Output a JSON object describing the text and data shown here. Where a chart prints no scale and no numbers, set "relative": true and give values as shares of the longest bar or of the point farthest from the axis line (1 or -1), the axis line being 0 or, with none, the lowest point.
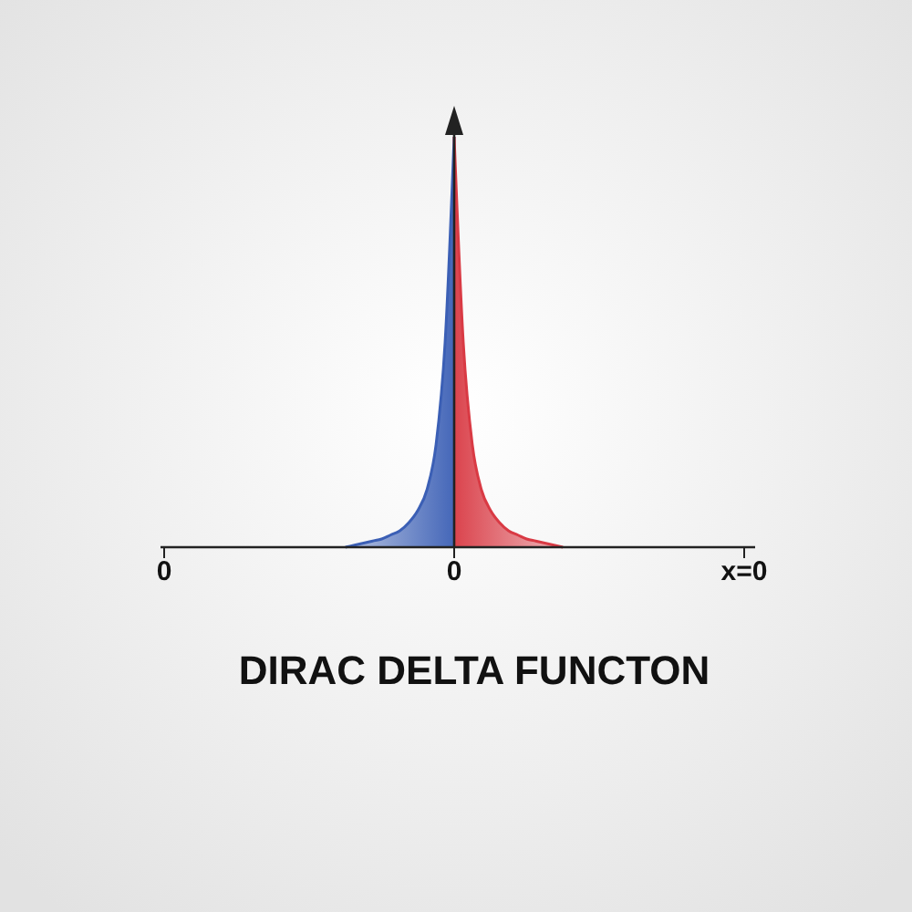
{
  "chart_data": {
    "type": "area",
    "title": "DIRAC DELTA FUNCTON",
    "relative": true,
    "categories": [
      "0",
      null,
      null,
      null,
      null,
      null,
      null,
      null,
      null,
      null,
      null,
      null,
      null,
      null,
      null,
      null,
      null,
      null,
      null,
      null,
      null,
      null,
      null,
      null,
      null,
      null,
      null,
      null,
      null,
      null,
      null,
      null,
      "0",
      null,
      null,
      null,
      null,
      null,
      null,
      null,
      null,
      null,
      null,
      null,
      null,
      null,
      null,
      null,
      null,
      null,
      null,
      null,
      null,
      null,
      null,
      null,
      null,
      null,
      null,
      null,
      null,
      null,
      null,
      null,
      "x=0"
    ],
    "series": [
      {
        "color": "#3b5fb5",
        "values": [
          null,
          null,
          null,
          null,
          null,
          null,
          null,
          null,
          null,
          null,
          null,
          null,
          null,
          null,
          null,
          null,
          null,
          null,
          null,
          null,
          0,
          0.005,
          0.01,
          0.015,
          0.02,
          0.03,
          0.04,
          0.06,
          0.09,
          0.14,
          0.25,
          0.5,
          1,
          null,
          null,
          null,
          null,
          null,
          null,
          null,
          null,
          null,
          null,
          null,
          null,
          null,
          null,
          null,
          null,
          null,
          null,
          null,
          null,
          null,
          null,
          null,
          null,
          null,
          null,
          null,
          null,
          null,
          null,
          null,
          null
        ]
      },
      {
        "color": "#d93a44",
        "values": [
          null,
          null,
          null,
          null,
          null,
          null,
          null,
          null,
          null,
          null,
          null,
          null,
          null,
          null,
          null,
          null,
          null,
          null,
          null,
          null,
          null,
          null,
          null,
          null,
          null,
          null,
          null,
          null,
          null,
          null,
          null,
          null,
          1,
          0.5,
          0.25,
          0.14,
          0.09,
          0.06,
          0.04,
          0.03,
          0.02,
          0.015,
          0.01,
          0.005,
          0,
          null,
          null,
          null,
          null,
          null,
          null,
          null,
          null,
          null,
          null,
          null,
          null,
          null,
          null,
          null,
          null,
          null,
          null,
          null,
          null
        ]
      }
    ]
  }
}
